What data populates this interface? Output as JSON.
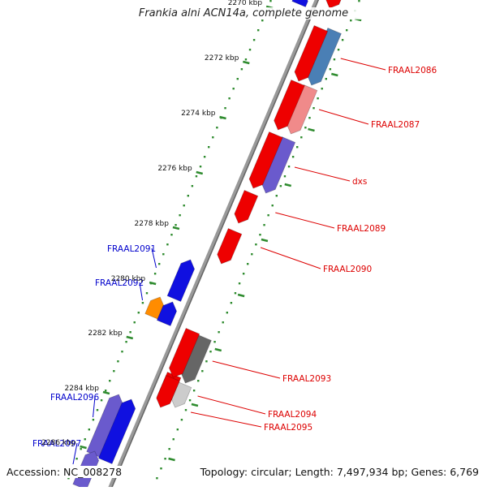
{
  "title": "Frankia alni ACN14a, complete genome",
  "footer": {
    "accession": "Accession: NC_008278",
    "info": "Topology: circular; Length: 7,497,934 bp; Genes: 6,769"
  },
  "ruler": {
    "ticks": [
      "2270 kbp",
      "2272 kbp",
      "2274 kbp",
      "2276 kbp",
      "2278 kbp",
      "2280 kbp",
      "2282 kbp",
      "2284 kbp",
      "2286 kbp"
    ]
  },
  "colors": {
    "forward_label": "#0000cc",
    "reverse_label": "#dd0000",
    "tick": "#2e8b2e",
    "backbone": "#888888"
  },
  "genes": [
    {
      "label": "FRAAL2086",
      "strand": "reverse",
      "lane": 2,
      "color": "#4a7fb5"
    },
    {
      "label": "FRAAL2087",
      "strand": "reverse",
      "lane": 2,
      "color": "#f08a8a"
    },
    {
      "label": "dxs",
      "strand": "reverse",
      "lane": 2,
      "color": "#6a5acd"
    },
    {
      "label": "FRAAL2089",
      "strand": "reverse",
      "lane": 1,
      "color": "#ee0000"
    },
    {
      "label": "FRAAL2090",
      "strand": "reverse",
      "lane": 1,
      "color": "#ee0000"
    },
    {
      "label": "FRAAL2091",
      "strand": "forward",
      "lane": 1,
      "color": "#1010e0"
    },
    {
      "label": "FRAAL2092",
      "strand": "forward",
      "lane": 2,
      "color": "#ff8c00"
    },
    {
      "label": "FRAAL2093",
      "strand": "reverse",
      "lane": 2,
      "color": "#666666"
    },
    {
      "label": "FRAAL2094",
      "strand": "reverse",
      "lane": 2,
      "color": "#cccccc"
    },
    {
      "label": "FRAAL2095",
      "strand": "reverse",
      "lane": 1,
      "color": "#ee0000"
    },
    {
      "label": "FRAAL2096",
      "strand": "forward",
      "lane": 2,
      "color": "#6a5acd"
    },
    {
      "label": "FRAAL2097",
      "strand": "forward",
      "lane": 2,
      "color": "#6a5acd"
    }
  ],
  "unlabeled_genes": [
    {
      "strand": "reverse",
      "lane": 1,
      "color": "#ee0000"
    },
    {
      "strand": "reverse",
      "lane": 1,
      "color": "#ee0000"
    },
    {
      "strand": "reverse",
      "lane": 1,
      "color": "#ee0000"
    },
    {
      "strand": "reverse",
      "lane": 1,
      "color": "#ee0000"
    },
    {
      "strand": "reverse",
      "lane": 1,
      "color": "#ee0000"
    },
    {
      "strand": "reverse",
      "lane": 1,
      "color": "#ee0000"
    },
    {
      "strand": "forward",
      "lane": 1,
      "color": "#1010e0"
    },
    {
      "strand": "forward",
      "lane": 1,
      "color": "#1010e0"
    },
    {
      "strand": "forward",
      "lane": 1,
      "color": "#1010e0"
    }
  ]
}
